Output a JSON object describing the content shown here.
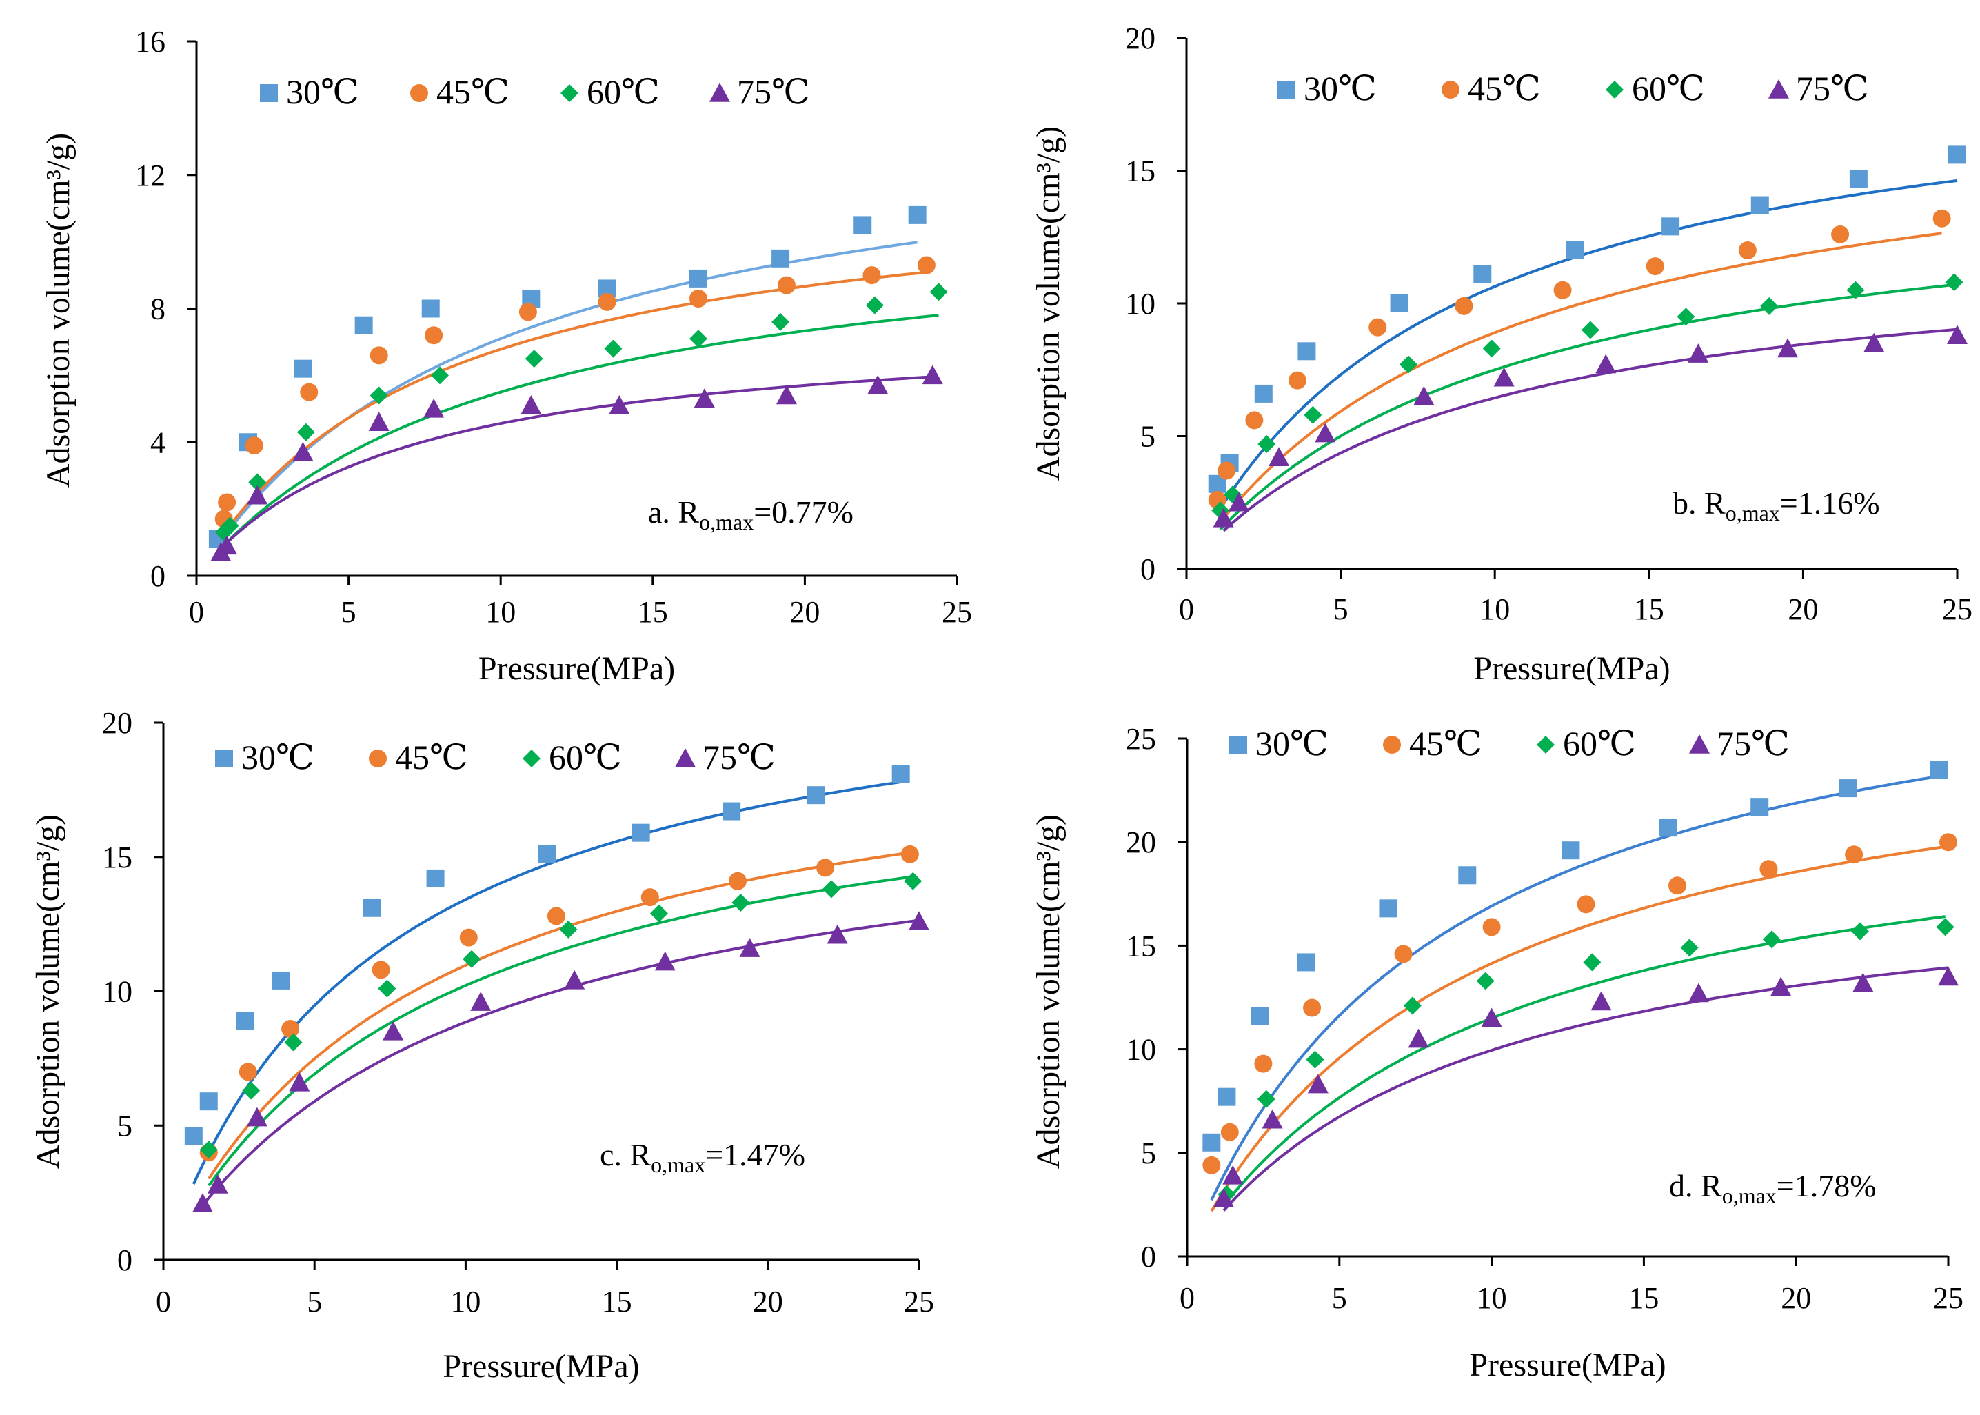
{
  "chart_data": [
    {
      "type": "scatter",
      "panel": "a",
      "annotation": {
        "prefix": "a. R",
        "sub": "o,max",
        "value": "=0.77%"
      },
      "xlabel": "Pressure(MPa)",
      "ylabel": "Adsorption volume(cm³/g)",
      "xlim": [
        0,
        25
      ],
      "ylim": [
        0,
        16
      ],
      "xticks": [
        0,
        5,
        10,
        15,
        20,
        25
      ],
      "yticks": [
        0,
        4,
        8,
        12,
        16
      ],
      "series": [
        {
          "name": "30℃",
          "marker": "square",
          "color": "#5b9bd5",
          "line_color": "#6fa8e0",
          "fit": [
            14.2,
            0.1
          ],
          "x": [
            0.7,
            1.7,
            3.5,
            5.5,
            7.7,
            11.0,
            13.5,
            16.5,
            19.2,
            21.9,
            23.7
          ],
          "y": [
            1.1,
            4.0,
            6.2,
            7.5,
            8.0,
            8.3,
            8.6,
            8.9,
            9.5,
            10.5,
            10.8
          ]
        },
        {
          "name": "45℃",
          "marker": "circle",
          "color": "#ed7d31",
          "line_color": "#ed7d31",
          "fit": [
            12.0,
            0.13
          ],
          "x": [
            0.9,
            1.0,
            1.9,
            3.7,
            6.0,
            7.8,
            10.9,
            13.5,
            16.5,
            19.4,
            22.2,
            24.0
          ],
          "y": [
            1.7,
            2.2,
            3.9,
            5.5,
            6.6,
            7.2,
            7.9,
            8.2,
            8.3,
            8.7,
            9.0,
            9.3
          ]
        },
        {
          "name": "60℃",
          "marker": "diamond",
          "color": "#00b050",
          "line_color": "#00b050",
          "fit": [
            11.0,
            0.1
          ],
          "x": [
            0.9,
            1.1,
            2.0,
            3.6,
            6.0,
            8.0,
            11.1,
            13.7,
            16.5,
            19.2,
            22.3,
            24.4
          ],
          "y": [
            1.3,
            1.5,
            2.8,
            4.3,
            5.4,
            6.0,
            6.5,
            6.8,
            7.1,
            7.6,
            8.1,
            8.5
          ]
        },
        {
          "name": "75℃",
          "marker": "triangle",
          "color": "#7030a0",
          "line_color": "#7030a0",
          "fit": [
            7.6,
            0.15
          ],
          "x": [
            0.8,
            1.0,
            2.0,
            3.5,
            6.0,
            7.8,
            11.0,
            13.9,
            16.7,
            19.4,
            22.4,
            24.2
          ],
          "y": [
            0.7,
            0.9,
            2.4,
            3.7,
            4.6,
            5.0,
            5.1,
            5.1,
            5.3,
            5.4,
            5.7,
            6.0
          ]
        }
      ]
    },
    {
      "type": "scatter",
      "panel": "b",
      "annotation": {
        "prefix": "b. R",
        "sub": "o,max",
        "value": "=1.16%"
      },
      "xlabel": "Pressure(MPa)",
      "ylabel": "Adsorption volume(cm³/g)",
      "xlim": [
        0,
        25
      ],
      "ylim": [
        0,
        20
      ],
      "xticks": [
        0,
        5,
        10,
        15,
        20,
        25
      ],
      "yticks": [
        0,
        5,
        10,
        15,
        20
      ],
      "series": [
        {
          "name": "30℃",
          "marker": "square",
          "color": "#5b9bd5",
          "line_color": "#1f6fc5",
          "fit": [
            19.5,
            0.12
          ],
          "x": [
            1.0,
            1.4,
            2.5,
            3.9,
            6.9,
            9.6,
            12.6,
            15.7,
            18.6,
            21.8,
            25.0
          ],
          "y": [
            3.2,
            4.0,
            6.6,
            8.2,
            10.0,
            11.1,
            12.0,
            12.9,
            13.7,
            14.7,
            15.6
          ]
        },
        {
          "name": "45℃",
          "marker": "circle",
          "color": "#ed7d31",
          "line_color": "#ed7d31",
          "fit": [
            17.8,
            0.1
          ],
          "x": [
            1.0,
            1.3,
            2.2,
            3.6,
            6.2,
            9.0,
            12.2,
            15.2,
            18.2,
            21.2,
            24.5
          ],
          "y": [
            2.6,
            3.7,
            5.6,
            7.1,
            9.1,
            9.9,
            10.5,
            11.4,
            12.0,
            12.6,
            13.2
          ]
        },
        {
          "name": "60℃",
          "marker": "diamond",
          "color": "#00b050",
          "line_color": "#00b050",
          "fit": [
            15.0,
            0.1
          ],
          "x": [
            1.1,
            1.5,
            2.6,
            4.1,
            7.2,
            9.9,
            13.1,
            16.2,
            18.9,
            21.7,
            24.9
          ],
          "y": [
            2.2,
            2.8,
            4.7,
            5.8,
            7.7,
            8.3,
            9.0,
            9.5,
            9.9,
            10.5,
            10.8
          ]
        },
        {
          "name": "75℃",
          "marker": "triangle",
          "color": "#7030a0",
          "line_color": "#7030a0",
          "fit": [
            12.3,
            0.11
          ],
          "x": [
            1.2,
            1.7,
            3.0,
            4.5,
            7.7,
            10.3,
            13.6,
            16.6,
            19.5,
            22.3,
            25.0
          ],
          "y": [
            1.9,
            2.5,
            4.2,
            5.1,
            6.5,
            7.2,
            7.7,
            8.1,
            8.3,
            8.5,
            8.8
          ]
        }
      ]
    },
    {
      "type": "scatter",
      "panel": "c",
      "annotation": {
        "prefix": "c. R",
        "sub": "o,max",
        "value": "=1.47%"
      },
      "xlabel": "Pressure(MPa)",
      "ylabel": "Adsorption volume(cm³/g)",
      "xlim": [
        0,
        25
      ],
      "ylim": [
        0,
        20
      ],
      "xticks": [
        0,
        5,
        10,
        15,
        20,
        25
      ],
      "yticks": [
        0,
        5,
        10,
        15,
        20
      ],
      "series": [
        {
          "name": "30℃",
          "marker": "square",
          "color": "#5b9bd5",
          "line_color": "#1f6fc5",
          "fit": [
            23.0,
            0.14
          ],
          "x": [
            1.0,
            1.5,
            2.7,
            3.9,
            6.9,
            9.0,
            12.7,
            15.8,
            18.8,
            21.6,
            24.4
          ],
          "y": [
            4.6,
            5.9,
            8.9,
            10.4,
            13.1,
            14.2,
            15.1,
            15.9,
            16.7,
            17.3,
            18.1
          ]
        },
        {
          "name": "45℃",
          "marker": "circle",
          "color": "#ed7d31",
          "line_color": "#ed7d31",
          "fit": [
            20.5,
            0.115
          ],
          "x": [
            1.5,
            2.8,
            4.2,
            7.2,
            10.1,
            13.0,
            16.1,
            19.0,
            21.9,
            24.7
          ],
          "y": [
            4.0,
            7.0,
            8.6,
            10.8,
            12.0,
            12.8,
            13.5,
            14.1,
            14.6,
            15.1
          ]
        },
        {
          "name": "60℃",
          "marker": "diamond",
          "color": "#00b050",
          "line_color": "#00b050",
          "fit": [
            19.5,
            0.11
          ],
          "x": [
            1.5,
            2.9,
            4.3,
            7.4,
            10.2,
            13.4,
            16.4,
            19.1,
            22.1,
            24.8
          ],
          "y": [
            4.1,
            6.3,
            8.1,
            10.1,
            11.2,
            12.3,
            12.9,
            13.3,
            13.8,
            14.1
          ]
        },
        {
          "name": "75℃",
          "marker": "triangle",
          "color": "#7030a0",
          "line_color": "#7030a0",
          "fit": [
            17.7,
            0.1
          ],
          "x": [
            1.3,
            1.8,
            3.1,
            4.5,
            7.6,
            10.5,
            13.6,
            16.6,
            19.4,
            22.3,
            25.0
          ],
          "y": [
            2.1,
            2.8,
            5.3,
            6.6,
            8.5,
            9.6,
            10.4,
            11.1,
            11.6,
            12.1,
            12.6
          ]
        }
      ]
    },
    {
      "type": "scatter",
      "panel": "d",
      "annotation": {
        "prefix": "d. R",
        "sub": "o,max",
        "value": "=1.78%"
      },
      "xlabel": "Pressure(MPa)",
      "ylabel": "Adsorption volume(cm³/g)",
      "xlim": [
        0,
        25
      ],
      "ylim": [
        0,
        25
      ],
      "xticks": [
        0,
        5,
        10,
        15,
        20,
        25
      ],
      "yticks": [
        0,
        5,
        10,
        15,
        20,
        25
      ],
      "series": [
        {
          "name": "30℃",
          "marker": "square",
          "color": "#5b9bd5",
          "line_color": "#3d7fd0",
          "fit": [
            31.0,
            0.12
          ],
          "x": [
            0.8,
            1.3,
            2.4,
            3.9,
            6.6,
            9.2,
            12.6,
            15.8,
            18.8,
            21.7,
            24.7
          ],
          "y": [
            5.5,
            7.7,
            11.6,
            14.2,
            16.8,
            18.4,
            19.6,
            20.7,
            21.7,
            22.6,
            23.5
          ]
        },
        {
          "name": "45℃",
          "marker": "circle",
          "color": "#ed7d31",
          "line_color": "#ed7d31",
          "fit": [
            27.0,
            0.11
          ],
          "x": [
            0.8,
            1.4,
            2.5,
            4.1,
            7.1,
            10.0,
            13.1,
            16.1,
            19.1,
            21.9,
            25.0
          ],
          "y": [
            4.4,
            6.0,
            9.3,
            12.0,
            14.6,
            15.9,
            17.0,
            17.9,
            18.7,
            19.4,
            20.0
          ]
        },
        {
          "name": "60℃",
          "marker": "diamond",
          "color": "#00b050",
          "line_color": "#00b050",
          "fit": [
            23.0,
            0.1
          ],
          "x": [
            1.3,
            2.6,
            4.2,
            7.4,
            9.8,
            13.3,
            16.5,
            19.2,
            22.1,
            24.9
          ],
          "y": [
            3.0,
            7.6,
            9.5,
            12.1,
            13.3,
            14.2,
            14.9,
            15.3,
            15.7,
            15.9
          ]
        },
        {
          "name": "75℃",
          "marker": "triangle",
          "color": "#7030a0",
          "line_color": "#7030a0",
          "fit": [
            19.0,
            0.11
          ],
          "x": [
            1.2,
            1.5,
            2.8,
            4.3,
            7.6,
            10.0,
            13.6,
            16.8,
            19.5,
            22.2,
            25.0
          ],
          "y": [
            2.8,
            3.9,
            6.6,
            8.3,
            10.5,
            11.5,
            12.3,
            12.7,
            13.0,
            13.2,
            13.5
          ]
        }
      ]
    }
  ]
}
